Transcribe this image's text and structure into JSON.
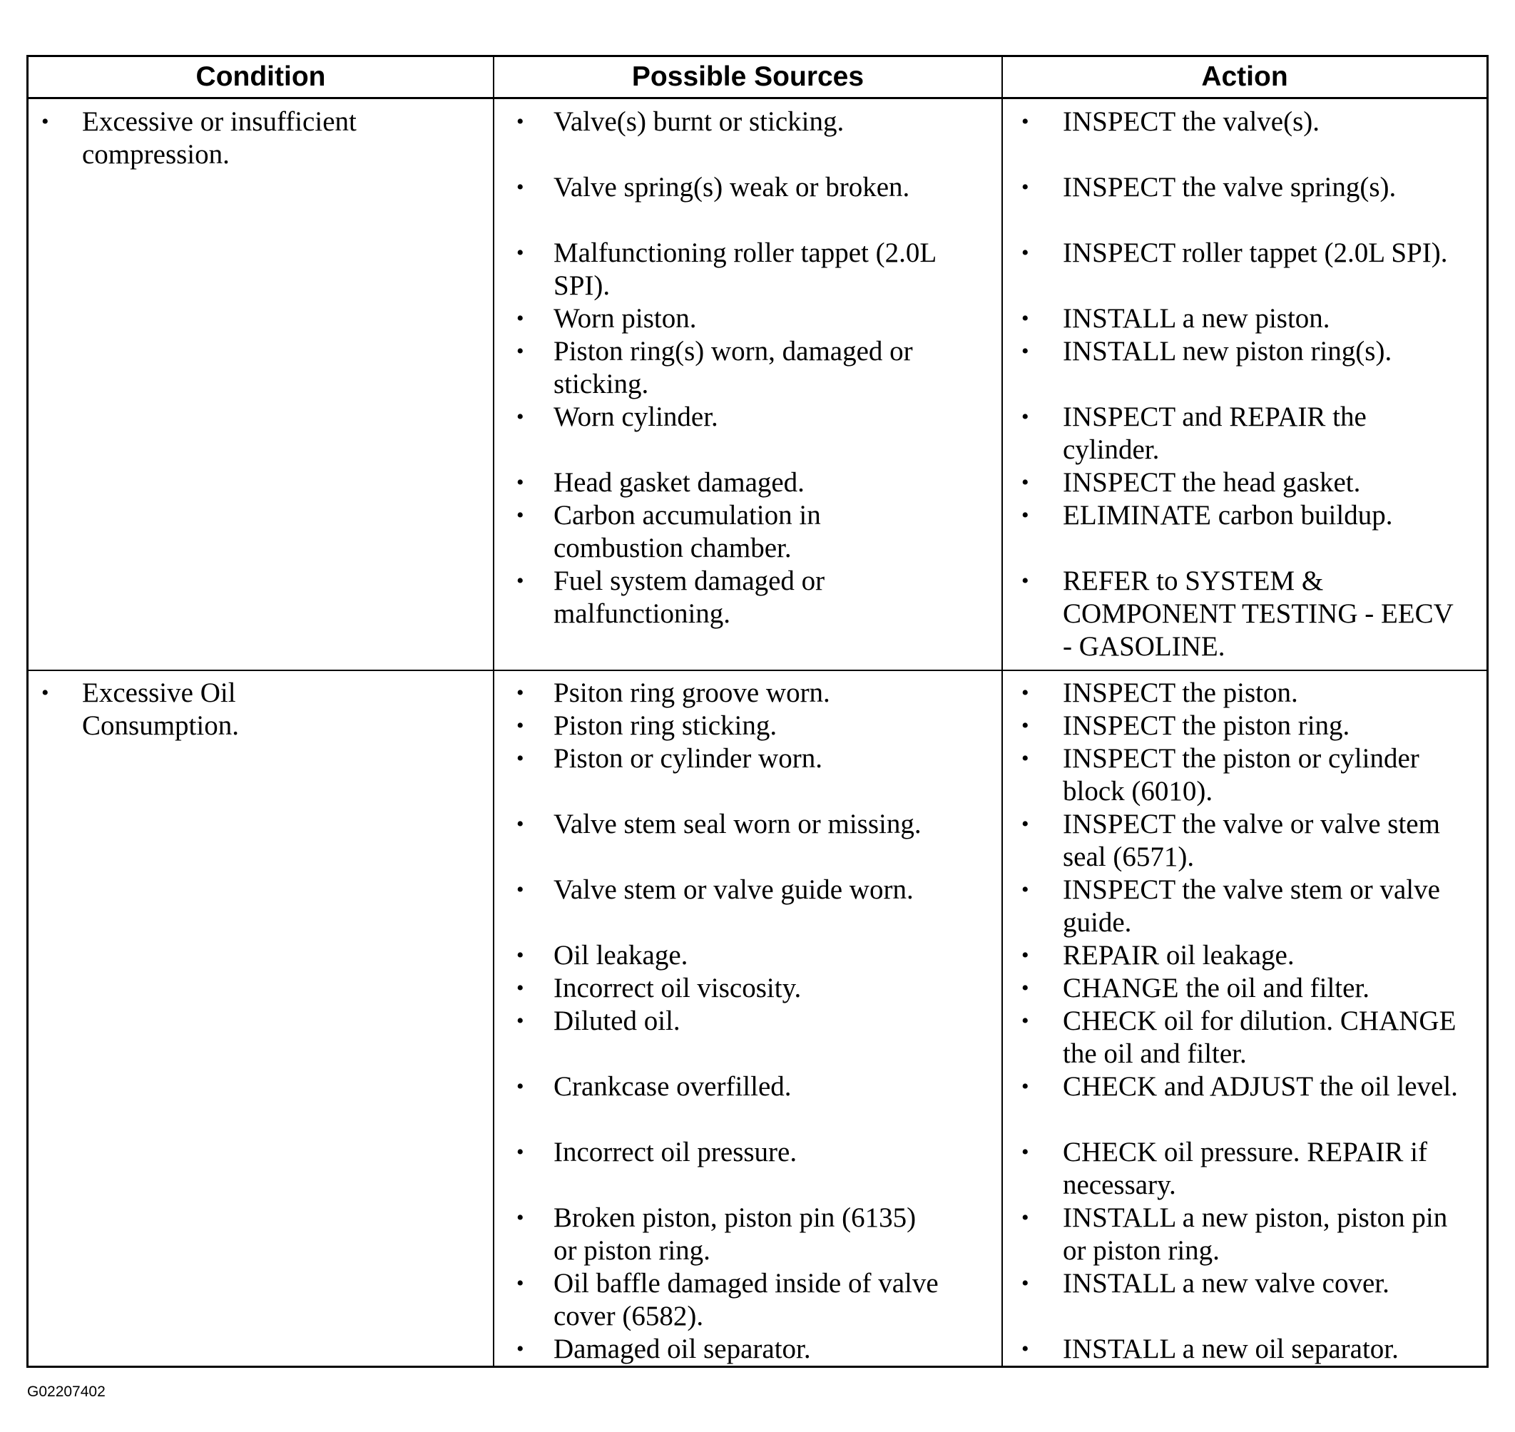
{
  "table": {
    "headers": [
      "Condition",
      "Possible Sources",
      "Action"
    ],
    "rows": [
      {
        "condition": "Excessive or insufficient compression.",
        "sources": [
          "Valve(s) burnt or sticking.",
          "Valve spring(s) weak or broken.",
          "Malfunctioning roller tappet (2.0L SPI).",
          "Worn piston.",
          "Piston ring(s) worn, damaged or sticking.",
          "Worn cylinder.",
          "Head gasket damaged.",
          "Carbon accumulation in combustion chamber.",
          "Fuel system damaged or malfunctioning."
        ],
        "actions": [
          "INSPECT the valve(s).",
          "INSPECT the valve spring(s).",
          "INSPECT roller tappet (2.0L SPI).",
          "INSTALL a new piston.",
          "INSTALL new piston ring(s).",
          "INSPECT and REPAIR the cylinder.",
          "INSPECT the head gasket.",
          "ELIMINATE carbon buildup.",
          "REFER to  SYSTEM & COMPONENT TESTING - EECV - GASOLINE."
        ]
      },
      {
        "condition": "Excessive Oil Consumption.",
        "sources": [
          "Psiton ring groove worn.",
          "Piston ring sticking.",
          "Piston or cylinder worn.",
          "Valve stem seal worn or missing.",
          "Valve stem or valve guide worn.",
          "Oil leakage.",
          "Incorrect oil viscosity.",
          "Diluted oil.",
          "Crankcase overfilled.",
          "Incorrect oil pressure.",
          "Broken piston, piston pin (6135) or piston ring.",
          "Oil baffle damaged inside of valve cover (6582).",
          "Damaged oil separator."
        ],
        "actions": [
          "INSPECT the piston.",
          "INSPECT the piston ring.",
          "INSPECT the piston or cylinder block (6010).",
          "INSPECT the valve or valve stem seal (6571).",
          "INSPECT the valve stem or valve guide.",
          "REPAIR oil leakage.",
          "CHANGE the oil and filter.",
          "CHECK oil for dilution. CHANGE the oil and filter.",
          "CHECK and ADJUST the oil level.",
          "CHECK oil pressure. REPAIR if necessary.",
          "INSTALL a new piston, piston pin or piston ring.",
          "INSTALL a new valve cover.",
          "INSTALL a new oil separator."
        ]
      }
    ]
  },
  "footer": {
    "code": "G02207402"
  }
}
